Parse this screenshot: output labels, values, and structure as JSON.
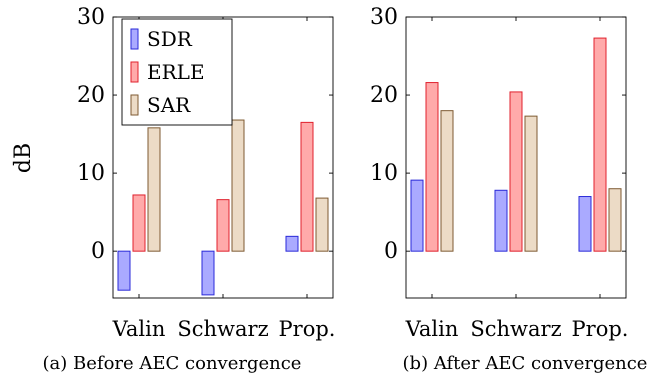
{
  "colors": {
    "SDR": {
      "fill": "#aaaaff",
      "stroke": "#2a2ad8"
    },
    "ERLE": {
      "fill": "#ffaaaa",
      "stroke": "#e0202c"
    },
    "SAR": {
      "fill": "#ecdbc6",
      "stroke": "#7e5a32"
    }
  },
  "ylabel": "dB",
  "chart_data": [
    {
      "type": "bar",
      "caption": "(a) Before AEC convergence",
      "categories": [
        "Valin",
        "Schwarz",
        "Prop."
      ],
      "series": [
        {
          "name": "SDR",
          "values": [
            -5.0,
            -5.6,
            1.9
          ]
        },
        {
          "name": "ERLE",
          "values": [
            7.2,
            6.6,
            16.5
          ]
        },
        {
          "name": "SAR",
          "values": [
            15.8,
            16.8,
            6.8
          ]
        }
      ],
      "ylim": [
        -6,
        30
      ],
      "yticks": [
        "0",
        "10",
        "20",
        "30"
      ],
      "legend": "top-left"
    },
    {
      "type": "bar",
      "caption": "(b) After AEC convergence",
      "categories": [
        "Valin",
        "Schwarz",
        "Prop."
      ],
      "series": [
        {
          "name": "SDR",
          "values": [
            9.1,
            7.8,
            7.0
          ]
        },
        {
          "name": "ERLE",
          "values": [
            21.6,
            20.4,
            27.3
          ]
        },
        {
          "name": "SAR",
          "values": [
            18.0,
            17.3,
            8.0
          ]
        }
      ],
      "ylim": [
        -6,
        30
      ],
      "yticks": [
        "0",
        "10",
        "20",
        "30"
      ]
    }
  ]
}
